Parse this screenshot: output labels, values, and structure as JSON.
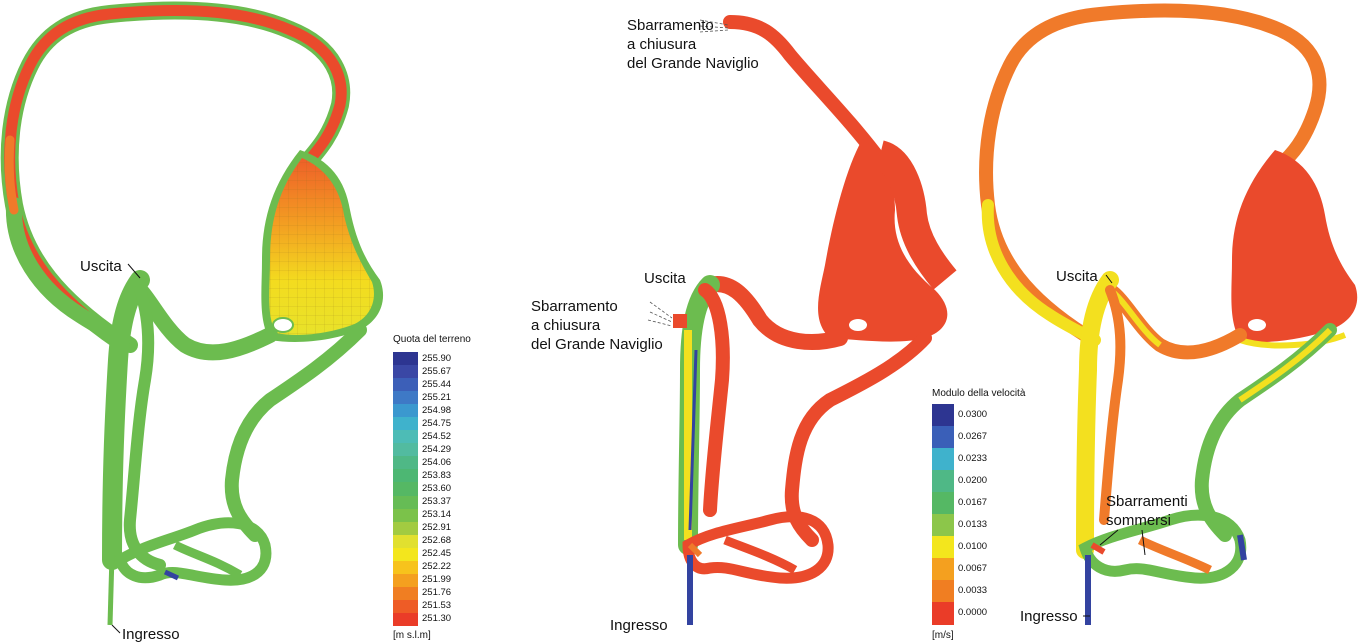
{
  "panels": [
    {
      "id": "terrain",
      "labels": {
        "uscita": "Uscita",
        "ingresso": "Ingresso"
      },
      "legend": {
        "title": "Quota del terreno",
        "unit": "[m s.l.m]",
        "values": [
          "255.90",
          "255.67",
          "255.44",
          "255.21",
          "254.98",
          "254.75",
          "254.52",
          "254.29",
          "254.06",
          "253.83",
          "253.60",
          "253.37",
          "253.14",
          "252.91",
          "252.68",
          "252.45",
          "252.22",
          "251.99",
          "251.76",
          "251.53",
          "251.30"
        ],
        "colors": [
          "#2d3591",
          "#3a47a5",
          "#3c5fb8",
          "#3e79c6",
          "#3b98cf",
          "#3fb2cc",
          "#4dbcb6",
          "#52bba0",
          "#4fb886",
          "#4db773",
          "#55b864",
          "#66bc55",
          "#7bc24a",
          "#a2cb41",
          "#e1e02f",
          "#f3e61d",
          "#f7c31c",
          "#f4a01f",
          "#f07e22",
          "#ee5c26",
          "#ea3c28"
        ]
      }
    },
    {
      "id": "velocity-1",
      "labels": {
        "sbarramento_top": [
          "Sbarramento",
          "a chiusura",
          "del Grande Naviglio"
        ],
        "uscita": "Uscita",
        "sbarramento_left": [
          "Sbarramento",
          "a chiusura",
          "del Grande Naviglio"
        ],
        "ingresso": "Ingresso"
      },
      "legend": {
        "title": "Modulo della velocità",
        "unit": "[m/s]",
        "values": [
          "0.0300",
          "0.0267",
          "0.0233",
          "0.0200",
          "0.0167",
          "0.0133",
          "0.0100",
          "0.0067",
          "0.0033",
          "0.0000"
        ],
        "colors": [
          "#2d3591",
          "#3a5fb8",
          "#3fb2cc",
          "#4fb886",
          "#55b864",
          "#8cc64a",
          "#f3e61d",
          "#f4a01f",
          "#f07e22",
          "#ea3c28"
        ]
      }
    },
    {
      "id": "velocity-2",
      "labels": {
        "uscita": "Uscita",
        "sbarramenti": [
          "Sbarramenti",
          "sommersi"
        ],
        "ingresso": "Ingresso"
      }
    }
  ],
  "colors": {
    "red": "#ea4a2c",
    "orange": "#f07a2a",
    "green": "#6cbc4f",
    "yellow": "#f3e01f",
    "blue": "#3343a0",
    "outline": "#7cc36b"
  }
}
